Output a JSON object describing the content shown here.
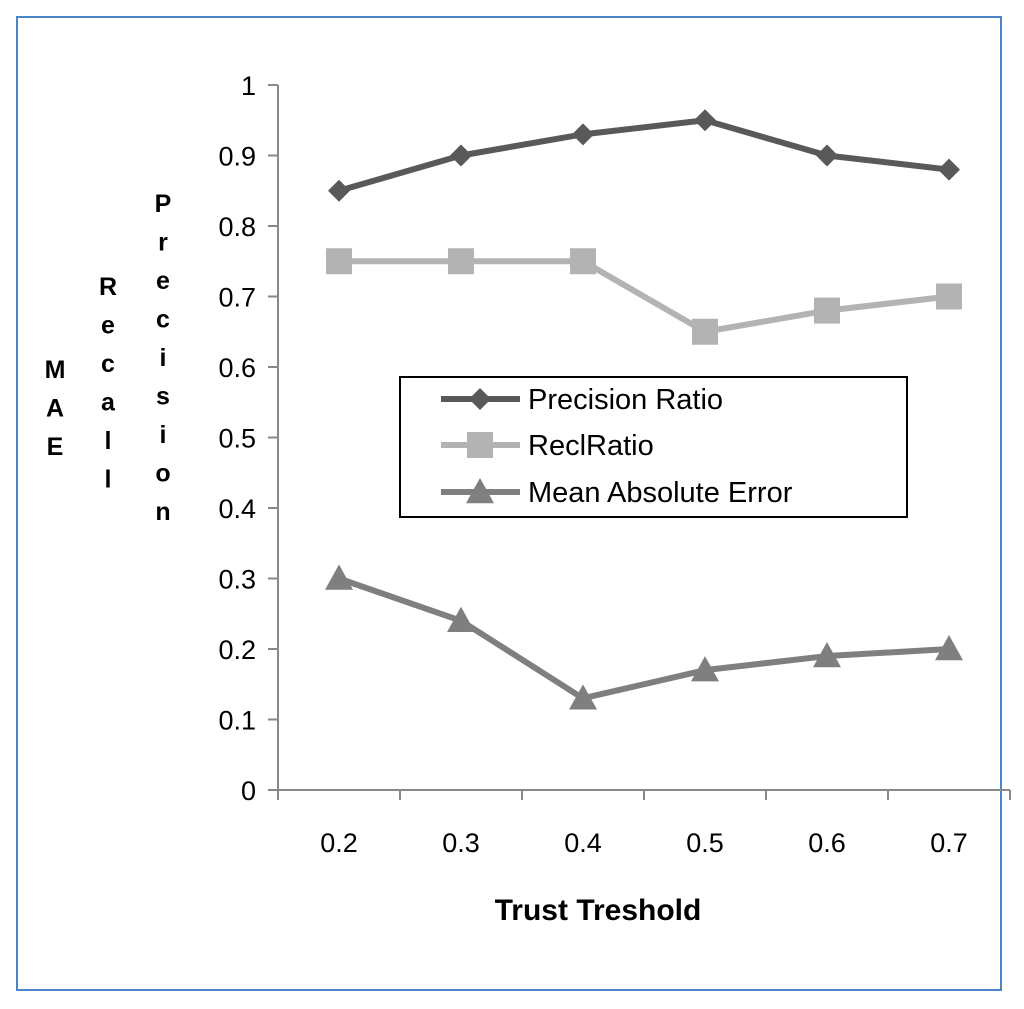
{
  "chart_data": {
    "type": "line",
    "categories": [
      "0.2",
      "0.3",
      "0.4",
      "0.5",
      "0.6",
      "0.7"
    ],
    "x_ticks": [
      "0.2",
      "0.3",
      "0.4",
      "0.5",
      "0.6",
      "0.7"
    ],
    "y_ticks": [
      "0",
      "0.1",
      "0.2",
      "0.3",
      "0.4",
      "0.5",
      "0.6",
      "0.7",
      "0.8",
      "0.9",
      "1"
    ],
    "ylim": [
      0,
      1
    ],
    "grid": false,
    "legend_position": "center",
    "xlabel": "Trust Treshold",
    "ylabels": [
      "MAE",
      "Recall",
      "Precision"
    ],
    "series": [
      {
        "name": "Precision Ratio",
        "marker": "diamond",
        "color": "#595959",
        "values": [
          0.85,
          0.9,
          0.93,
          0.95,
          0.9,
          0.88
        ]
      },
      {
        "name": "ReclRatio",
        "marker": "square",
        "color": "#b3b3b3",
        "values": [
          0.75,
          0.75,
          0.75,
          0.65,
          0.68,
          0.7
        ]
      },
      {
        "name": "Mean Absolute Error",
        "marker": "triangle",
        "color": "#7f7f7f",
        "values": [
          0.3,
          0.24,
          0.13,
          0.17,
          0.19,
          0.2
        ]
      }
    ]
  }
}
